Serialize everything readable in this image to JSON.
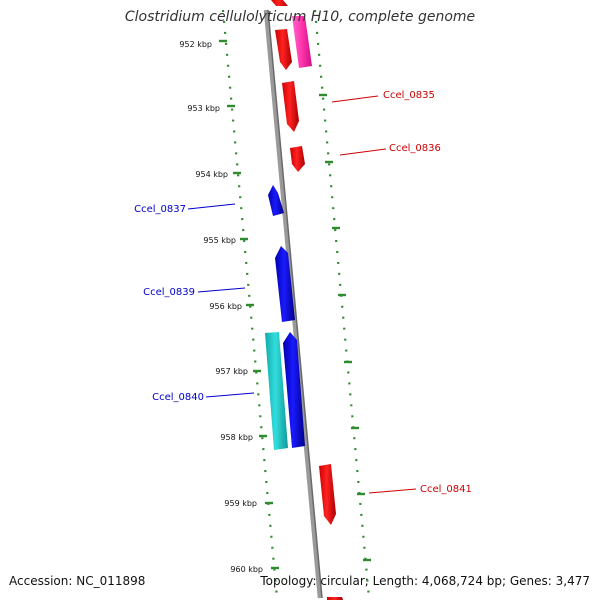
{
  "title": "Clostridium cellulolyticum H10, complete genome",
  "footer": {
    "accession": "Accession: NC_011898",
    "summary": "Topology: circular; Length: 4,068,724 bp; Genes: 3,477"
  },
  "ruler_labels": [
    "952 kbp",
    "953 kbp",
    "954 kbp",
    "955 kbp",
    "956 kbp",
    "957 kbp",
    "958 kbp",
    "959 kbp",
    "960 kbp"
  ],
  "gene_labels": {
    "right": [
      "Ccel_0835",
      "Ccel_0836",
      "Ccel_0841"
    ],
    "left": [
      "Ccel_0837",
      "Ccel_0839",
      "Ccel_0840"
    ]
  },
  "colors": {
    "forward_gene": "#ff0000",
    "reverse_gene": "#0000ff",
    "highlight_forward": "#ff33aa",
    "highlight_reverse": "#22cccc",
    "backbone": "#808080",
    "ruler": "#2e8b2e",
    "label_right": "#cc0000",
    "label_left": "#0000cc"
  }
}
